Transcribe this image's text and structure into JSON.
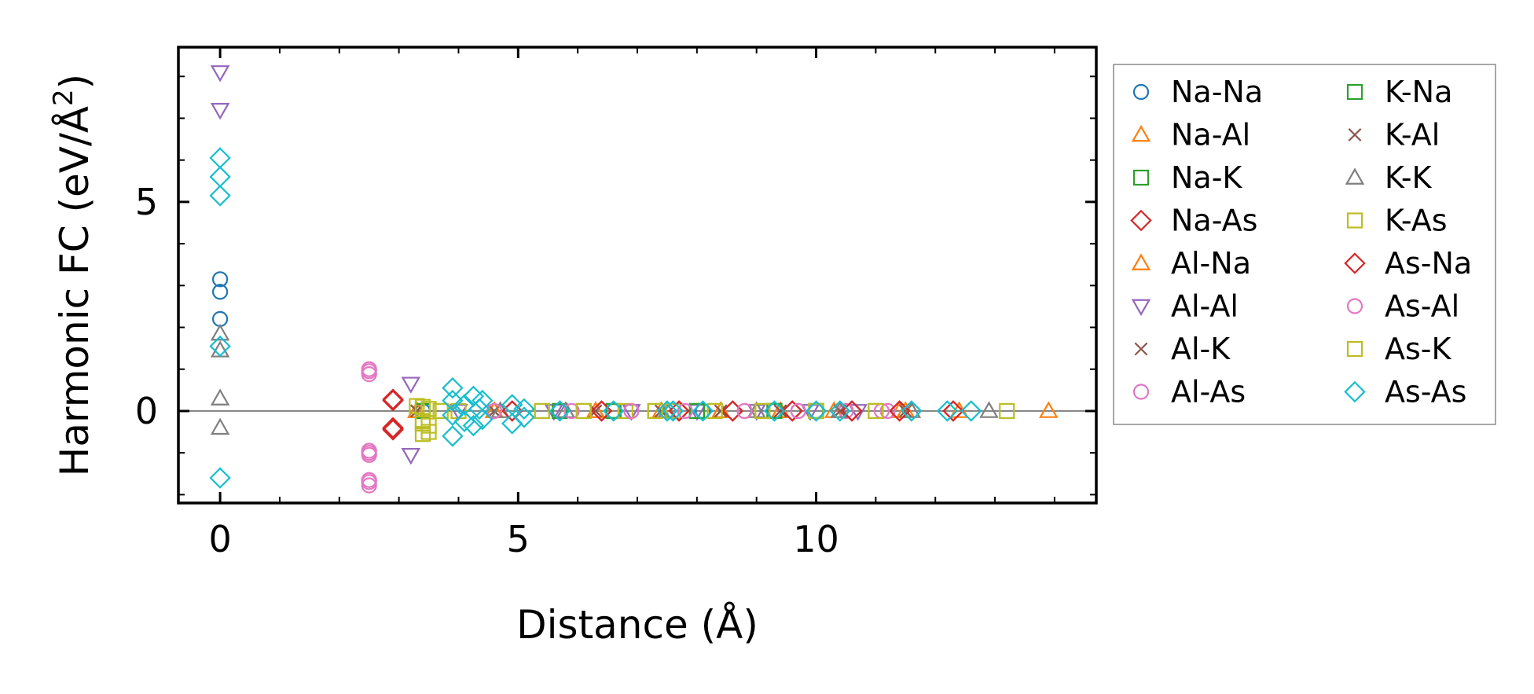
{
  "chart_data": {
    "type": "scatter",
    "title": "",
    "xlabel": "Distance (Å)",
    "ylabel_main": "Harmonic FC (eV/Å",
    "ylabel_sup": "2",
    "ylabel_close": ")",
    "xlim": [
      -0.7,
      14.7
    ],
    "ylim": [
      -2.2,
      8.7
    ],
    "xticks": [
      0,
      5,
      10
    ],
    "xtick_labels": [
      "0",
      "5",
      "10"
    ],
    "yticks": [
      0,
      5
    ],
    "ytick_labels": [
      "0",
      "5"
    ],
    "x_minor_step": 1,
    "y_minor_step": 1,
    "zero_line": true,
    "legend_position": "outside-right",
    "legend_columns": 2,
    "series": [
      {
        "name": "Na-Na",
        "marker": "circle",
        "color": "#1f77b4",
        "points": [
          [
            0,
            3.15
          ],
          [
            0,
            2.85
          ],
          [
            0,
            2.2
          ],
          [
            3.4,
            0
          ],
          [
            5.7,
            0
          ],
          [
            6.6,
            0
          ],
          [
            8.1,
            0
          ],
          [
            9.3,
            0
          ],
          [
            10.0,
            0
          ]
        ]
      },
      {
        "name": "Na-Al",
        "marker": "triangle-up",
        "color": "#ff7f0e",
        "points": [
          [
            3.3,
            0
          ],
          [
            4.6,
            0
          ],
          [
            6.3,
            0
          ],
          [
            7.4,
            0
          ],
          [
            8.4,
            0
          ],
          [
            9.4,
            0
          ],
          [
            10.3,
            0
          ],
          [
            11.4,
            0
          ],
          [
            12.4,
            0
          ]
        ]
      },
      {
        "name": "Na-K",
        "marker": "square",
        "color": "#2ca02c",
        "points": [
          [
            3.4,
            0
          ],
          [
            5.7,
            0
          ],
          [
            6.6,
            0
          ],
          [
            8.0,
            0
          ],
          [
            9.3,
            0
          ],
          [
            10.0,
            0
          ]
        ]
      },
      {
        "name": "Na-As",
        "marker": "diamond",
        "color": "#d62728",
        "points": [
          [
            2.9,
            0.28
          ],
          [
            2.9,
            -0.4
          ],
          [
            2.9,
            -0.45
          ],
          [
            4.9,
            0
          ],
          [
            6.4,
            0
          ],
          [
            7.7,
            0
          ],
          [
            8.6,
            0
          ],
          [
            9.6,
            0
          ],
          [
            10.6,
            0
          ],
          [
            11.4,
            0
          ],
          [
            12.3,
            0
          ]
        ]
      },
      {
        "name": "Al-Na",
        "marker": "triangle-up",
        "color": "#ff7f0e",
        "points": [
          [
            3.3,
            0
          ],
          [
            4.6,
            0
          ],
          [
            6.3,
            0
          ],
          [
            7.4,
            0
          ],
          [
            8.4,
            0
          ],
          [
            9.4,
            0
          ],
          [
            10.4,
            0
          ],
          [
            11.5,
            0
          ],
          [
            13.9,
            0
          ]
        ]
      },
      {
        "name": "Al-Al",
        "marker": "triangle-down",
        "color": "#9467bd",
        "points": [
          [
            0,
            8.1
          ],
          [
            0,
            7.2
          ],
          [
            3.2,
            0.65
          ],
          [
            3.2,
            -1.05
          ],
          [
            4.0,
            0
          ],
          [
            5.6,
            0
          ],
          [
            6.9,
            0
          ],
          [
            8.0,
            0
          ],
          [
            9.0,
            0
          ],
          [
            9.9,
            0
          ],
          [
            10.7,
            0
          ]
        ]
      },
      {
        "name": "Al-K",
        "marker": "x",
        "color": "#8c564b",
        "points": [
          [
            3.3,
            0
          ],
          [
            4.6,
            0
          ],
          [
            6.3,
            0
          ],
          [
            7.4,
            0
          ],
          [
            8.4,
            0
          ],
          [
            9.4,
            0
          ],
          [
            10.4,
            0
          ],
          [
            11.5,
            0
          ]
        ]
      },
      {
        "name": "Al-As",
        "marker": "circle",
        "color": "#e377c2",
        "points": [
          [
            2.5,
            1.0
          ],
          [
            2.5,
            0.88
          ],
          [
            2.5,
            -0.95
          ],
          [
            2.5,
            -1.05
          ],
          [
            2.5,
            -1.65
          ],
          [
            2.5,
            -1.78
          ],
          [
            4.6,
            0
          ],
          [
            5.9,
            0
          ],
          [
            6.9,
            0
          ],
          [
            7.8,
            0
          ],
          [
            8.8,
            0
          ],
          [
            9.7,
            0
          ],
          [
            10.5,
            0
          ],
          [
            11.2,
            0
          ]
        ]
      },
      {
        "name": "K-Na",
        "marker": "square",
        "color": "#2ca02c",
        "points": [
          [
            3.4,
            0
          ],
          [
            5.7,
            0
          ],
          [
            6.6,
            0
          ],
          [
            8.0,
            0
          ],
          [
            9.3,
            0
          ],
          [
            10.0,
            0
          ]
        ]
      },
      {
        "name": "K-Al",
        "marker": "x",
        "color": "#8c564b",
        "points": [
          [
            3.3,
            0
          ],
          [
            4.6,
            0
          ],
          [
            6.3,
            0
          ],
          [
            7.4,
            0
          ],
          [
            8.4,
            0
          ],
          [
            9.4,
            0
          ],
          [
            10.4,
            0
          ],
          [
            11.5,
            0
          ]
        ]
      },
      {
        "name": "K-K",
        "marker": "triangle-up",
        "color": "#7f7f7f",
        "points": [
          [
            0,
            1.85
          ],
          [
            0,
            1.45
          ],
          [
            0,
            0.3
          ],
          [
            0,
            -0.4
          ],
          [
            4.7,
            0
          ],
          [
            5.8,
            0
          ],
          [
            7.5,
            0
          ],
          [
            9.0,
            0
          ],
          [
            10.4,
            0
          ],
          [
            11.6,
            0
          ],
          [
            12.9,
            0
          ]
        ]
      },
      {
        "name": "K-As",
        "marker": "square",
        "color": "#bcbd22",
        "points": [
          [
            3.3,
            0.12
          ],
          [
            3.4,
            -0.25
          ],
          [
            3.4,
            -0.55
          ],
          [
            3.5,
            0.05
          ],
          [
            3.5,
            -0.35
          ],
          [
            3.7,
            0
          ],
          [
            4.0,
            0
          ],
          [
            5.4,
            0
          ],
          [
            6.1,
            0
          ],
          [
            6.8,
            0
          ],
          [
            7.3,
            0
          ],
          [
            7.6,
            0
          ],
          [
            8.3,
            0
          ],
          [
            9.1,
            0
          ],
          [
            10.0,
            0
          ],
          [
            11.0,
            0
          ],
          [
            13.2,
            0
          ]
        ]
      },
      {
        "name": "As-Na",
        "marker": "diamond",
        "color": "#d62728",
        "points": [
          [
            2.9,
            0.25
          ],
          [
            2.9,
            -0.42
          ],
          [
            4.9,
            0
          ],
          [
            6.4,
            0
          ],
          [
            7.7,
            0
          ],
          [
            8.6,
            0
          ],
          [
            9.6,
            0
          ],
          [
            10.6,
            0
          ],
          [
            11.4,
            0
          ],
          [
            12.3,
            0
          ]
        ]
      },
      {
        "name": "As-Al",
        "marker": "circle",
        "color": "#e377c2",
        "points": [
          [
            2.5,
            0.95
          ],
          [
            2.5,
            -1.0
          ],
          [
            2.5,
            -1.7
          ],
          [
            4.6,
            0
          ],
          [
            5.9,
            0
          ],
          [
            6.9,
            0
          ],
          [
            7.8,
            0
          ],
          [
            8.8,
            0
          ],
          [
            9.7,
            0
          ],
          [
            11.1,
            0
          ]
        ]
      },
      {
        "name": "As-K",
        "marker": "square",
        "color": "#bcbd22",
        "points": [
          [
            3.4,
            0.1
          ],
          [
            3.4,
            -0.3
          ],
          [
            3.5,
            -0.5
          ],
          [
            3.7,
            0
          ],
          [
            5.4,
            0
          ],
          [
            6.1,
            0
          ],
          [
            7.3,
            0
          ],
          [
            8.3,
            0
          ],
          [
            9.1,
            0
          ],
          [
            10.0,
            0
          ],
          [
            11.0,
            0
          ]
        ]
      },
      {
        "name": "As-As",
        "marker": "diamond",
        "color": "#17becf",
        "points": [
          [
            0,
            6.05
          ],
          [
            0,
            5.6
          ],
          [
            0,
            5.15
          ],
          [
            0,
            1.55
          ],
          [
            0,
            -1.6
          ],
          [
            3.9,
            0.55
          ],
          [
            3.9,
            0.25
          ],
          [
            3.9,
            -0.1
          ],
          [
            3.9,
            -0.6
          ],
          [
            4.1,
            0.15
          ],
          [
            4.1,
            -0.25
          ],
          [
            4.25,
            0.35
          ],
          [
            4.25,
            -0.35
          ],
          [
            4.35,
            0.05
          ],
          [
            4.4,
            0.25
          ],
          [
            4.4,
            -0.2
          ],
          [
            4.9,
            0.15
          ],
          [
            4.9,
            -0.3
          ],
          [
            5.1,
            0.05
          ],
          [
            5.1,
            -0.15
          ],
          [
            5.7,
            0
          ],
          [
            6.6,
            0
          ],
          [
            7.5,
            0
          ],
          [
            7.6,
            0
          ],
          [
            8.1,
            0
          ],
          [
            9.3,
            0
          ],
          [
            10.0,
            0
          ],
          [
            10.4,
            0
          ],
          [
            11.6,
            0
          ],
          [
            12.2,
            0
          ],
          [
            12.6,
            0
          ]
        ]
      }
    ]
  }
}
